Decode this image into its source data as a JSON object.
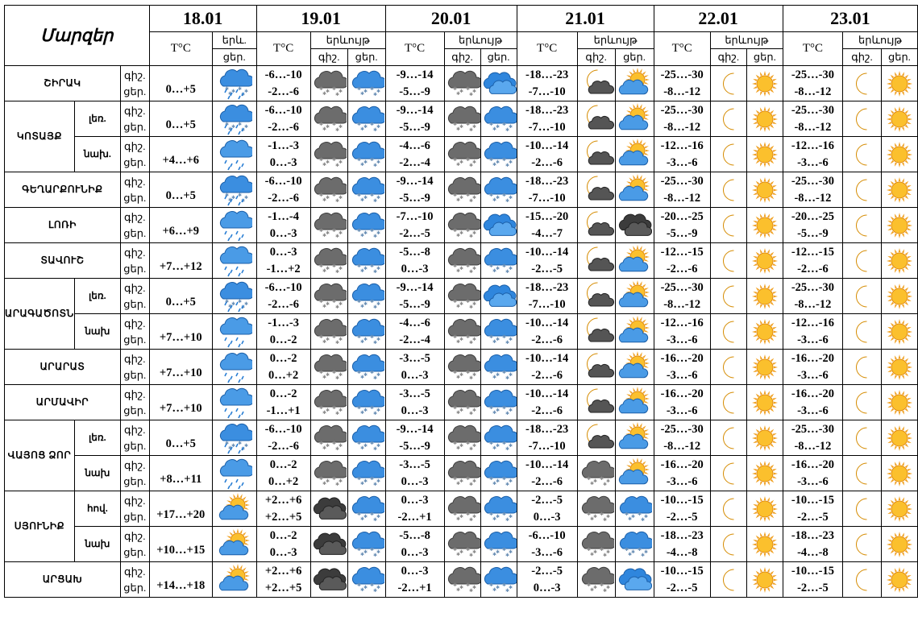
{
  "header": {
    "regions_label": "Մարզեր",
    "tc_label": "T°C",
    "phen_label_short": "երև.",
    "phen_label": "երևույթ",
    "night_label": "գիշ.",
    "day_label": "ցեր.",
    "dates": [
      "18.01",
      "19.01",
      "20.01",
      "21.01",
      "22.01",
      "23.01"
    ]
  },
  "row_labels": {
    "night": "գիշ.",
    "day": "ցեր."
  },
  "rows": [
    {
      "region": "ՇԻՐԱԿ",
      "sub": "",
      "d18": {
        "t": "0…+5",
        "i": "snow-rain"
      },
      "d19": {
        "tn": "-6…-10",
        "td": "-2…-6",
        "in": "snow-dark",
        "id": "snow-blue"
      },
      "d20": {
        "tn": "-9…-14",
        "td": "-5…-9",
        "in": "snow-dark",
        "id": "cloud-blue"
      },
      "d21": {
        "tn": "-18…-23",
        "td": "-7…-10",
        "in": "moon-cloud",
        "id": "sun-cloud"
      },
      "d22": {
        "tn": "-25…-30",
        "td": "-8…-12",
        "in": "moon",
        "id": "sun"
      },
      "d23": {
        "tn": "-25…-30",
        "td": "-8…-12",
        "in": "moon",
        "id": "sun"
      }
    },
    {
      "region": "ԿՈՏԱՅՔ",
      "sub": "լեռ.",
      "d18": {
        "t": "0…+5",
        "i": "snow-rain"
      },
      "d19": {
        "tn": "-6…-10",
        "td": "-2…-6",
        "in": "snow-dark",
        "id": "snow-blue"
      },
      "d20": {
        "tn": "-9…-14",
        "td": "-5…-9",
        "in": "snow-dark",
        "id": "snow-blue"
      },
      "d21": {
        "tn": "-18…-23",
        "td": "-7…-10",
        "in": "moon-cloud",
        "id": "sun-cloud"
      },
      "d22": {
        "tn": "-25…-30",
        "td": "-8…-12",
        "in": "moon",
        "id": "sun"
      },
      "d23": {
        "tn": "-25…-30",
        "td": "-8…-12",
        "in": "moon",
        "id": "sun"
      }
    },
    {
      "region": "",
      "sub": "նախ.",
      "d18": {
        "t": "+4…+6",
        "i": "rain"
      },
      "d19": {
        "tn": "-1…-3",
        "td": "0…-3",
        "in": "snow-dark",
        "id": "snow-blue"
      },
      "d20": {
        "tn": "-4…-6",
        "td": "-2…-4",
        "in": "snow-dark",
        "id": "snow-blue"
      },
      "d21": {
        "tn": "-10…-14",
        "td": "-2…-6",
        "in": "moon-cloud",
        "id": "sun-cloud"
      },
      "d22": {
        "tn": "-12…-16",
        "td": "-3…-6",
        "in": "moon",
        "id": "sun"
      },
      "d23": {
        "tn": "-12…-16",
        "td": "-3…-6",
        "in": "moon",
        "id": "sun"
      }
    },
    {
      "region": "ԳԵՂԱՐՔՈՒՆԻՔ",
      "sub": "",
      "d18": {
        "t": "0…+5",
        "i": "snow-rain"
      },
      "d19": {
        "tn": "-6…-10",
        "td": "-2…-6",
        "in": "snow-dark",
        "id": "snow-blue"
      },
      "d20": {
        "tn": "-9…-14",
        "td": "-5…-9",
        "in": "snow-dark",
        "id": "snow-blue"
      },
      "d21": {
        "tn": "-18…-23",
        "td": "-7…-10",
        "in": "moon-cloud",
        "id": "sun-cloud"
      },
      "d22": {
        "tn": "-25…-30",
        "td": "-8…-12",
        "in": "moon",
        "id": "sun"
      },
      "d23": {
        "tn": "-25…-30",
        "td": "-8…-12",
        "in": "moon",
        "id": "sun"
      }
    },
    {
      "region": "ԼՈՌԻ",
      "sub": "",
      "d18": {
        "t": "+6…+9",
        "i": "rain"
      },
      "d19": {
        "tn": "-1…-4",
        "td": "0…-3",
        "in": "snow-dark",
        "id": "snow-blue"
      },
      "d20": {
        "tn": "-7…-10",
        "td": "-2…-5",
        "in": "snow-dark",
        "id": "cloud-blue"
      },
      "d21": {
        "tn": "-15…-20",
        "td": "-4…-7",
        "in": "moon-cloud",
        "id": "dark-cloud"
      },
      "d22": {
        "tn": "-20…-25",
        "td": "-5…-9",
        "in": "moon",
        "id": "sun"
      },
      "d23": {
        "tn": "-20…-25",
        "td": "-5…-9",
        "in": "moon",
        "id": "sun"
      }
    },
    {
      "region": "ՏԱՎՈՒՇ",
      "sub": "",
      "d18": {
        "t": "+7…+12",
        "i": "rain"
      },
      "d19": {
        "tn": "0…-3",
        "td": "-1…+2",
        "in": "snow-dark",
        "id": "snow-blue"
      },
      "d20": {
        "tn": "-5…-8",
        "td": "0…-3",
        "in": "snow-dark",
        "id": "snow-blue"
      },
      "d21": {
        "tn": "-10…-14",
        "td": "-2…-5",
        "in": "moon-cloud",
        "id": "sun-cloud"
      },
      "d22": {
        "tn": "-12…-15",
        "td": "-2…-6",
        "in": "moon",
        "id": "sun"
      },
      "d23": {
        "tn": "-12…-15",
        "td": "-2…-6",
        "in": "moon",
        "id": "sun"
      }
    },
    {
      "region": "ԱՐԱԳԱԾՈՏՆ",
      "sub": "լեռ.",
      "d18": {
        "t": "0…+5",
        "i": "snow-rain"
      },
      "d19": {
        "tn": "-6…-10",
        "td": "-2…-6",
        "in": "snow-dark",
        "id": "snow-blue"
      },
      "d20": {
        "tn": "-9…-14",
        "td": "-5…-9",
        "in": "snow-dark",
        "id": "cloud-blue"
      },
      "d21": {
        "tn": "-18…-23",
        "td": "-7…-10",
        "in": "moon-cloud",
        "id": "sun-cloud"
      },
      "d22": {
        "tn": "-25…-30",
        "td": "-8…-12",
        "in": "moon",
        "id": "sun"
      },
      "d23": {
        "tn": "-25…-30",
        "td": "-8…-12",
        "in": "moon",
        "id": "sun"
      }
    },
    {
      "region": "",
      "sub": "նախ",
      "d18": {
        "t": "+7…+10",
        "i": "rain"
      },
      "d19": {
        "tn": "-1…-3",
        "td": "0…-2",
        "in": "snow-dark",
        "id": "snow-blue"
      },
      "d20": {
        "tn": "-4…-6",
        "td": "-2…-4",
        "in": "snow-dark",
        "id": "snow-blue"
      },
      "d21": {
        "tn": "-10…-14",
        "td": "-2…-6",
        "in": "moon-cloud",
        "id": "sun-cloud"
      },
      "d22": {
        "tn": "-12…-16",
        "td": "-3…-6",
        "in": "moon",
        "id": "sun"
      },
      "d23": {
        "tn": "-12…-16",
        "td": "-3…-6",
        "in": "moon",
        "id": "sun"
      }
    },
    {
      "region": "ԱՐԱՐԱՏ",
      "sub": "",
      "d18": {
        "t": "+7…+10",
        "i": "rain"
      },
      "d19": {
        "tn": "0…-2",
        "td": "0…+2",
        "in": "snow-dark",
        "id": "snow-blue"
      },
      "d20": {
        "tn": "-3…-5",
        "td": "0…-3",
        "in": "snow-dark",
        "id": "snow-blue"
      },
      "d21": {
        "tn": "-10…-14",
        "td": "-2…-6",
        "in": "moon-cloud",
        "id": "sun-cloud"
      },
      "d22": {
        "tn": "-16…-20",
        "td": "-3…-6",
        "in": "moon",
        "id": "sun"
      },
      "d23": {
        "tn": "-16…-20",
        "td": "-3…-6",
        "in": "moon",
        "id": "sun"
      }
    },
    {
      "region": "ԱՐՄԱՎԻՐ",
      "sub": "",
      "d18": {
        "t": "+7…+10",
        "i": "rain"
      },
      "d19": {
        "tn": "0…-2",
        "td": "-1…+1",
        "in": "snow-dark",
        "id": "snow-blue"
      },
      "d20": {
        "tn": "-3…-5",
        "td": "0…-3",
        "in": "snow-dark",
        "id": "snow-blue"
      },
      "d21": {
        "tn": "-10…-14",
        "td": "-2…-6",
        "in": "moon-cloud",
        "id": "sun-cloud"
      },
      "d22": {
        "tn": "-16…-20",
        "td": "-3…-6",
        "in": "moon",
        "id": "sun"
      },
      "d23": {
        "tn": "-16…-20",
        "td": "-3…-6",
        "in": "moon",
        "id": "sun"
      }
    },
    {
      "region": "ՎԱՅՈՑ ՁՈՐ",
      "sub": "լեռ.",
      "d18": {
        "t": "0…+5",
        "i": "snow-rain"
      },
      "d19": {
        "tn": "-6…-10",
        "td": "-2…-6",
        "in": "snow-dark",
        "id": "snow-blue"
      },
      "d20": {
        "tn": "-9…-14",
        "td": "-5…-9",
        "in": "snow-dark",
        "id": "snow-blue"
      },
      "d21": {
        "tn": "-18…-23",
        "td": "-7…-10",
        "in": "moon-cloud",
        "id": "sun-cloud"
      },
      "d22": {
        "tn": "-25…-30",
        "td": "-8…-12",
        "in": "moon",
        "id": "sun"
      },
      "d23": {
        "tn": "-25…-30",
        "td": "-8…-12",
        "in": "moon",
        "id": "sun"
      }
    },
    {
      "region": "",
      "sub": "նախ",
      "d18": {
        "t": "+8…+11",
        "i": "rain"
      },
      "d19": {
        "tn": "0…-2",
        "td": "0…+2",
        "in": "snow-dark",
        "id": "snow-blue"
      },
      "d20": {
        "tn": "-3…-5",
        "td": "0…-3",
        "in": "snow-dark",
        "id": "snow-blue"
      },
      "d21": {
        "tn": "-10…-14",
        "td": "-2…-6",
        "in": "snow-dark",
        "id": "sun-cloud"
      },
      "d22": {
        "tn": "-16…-20",
        "td": "-3…-6",
        "in": "moon",
        "id": "sun"
      },
      "d23": {
        "tn": "-16…-20",
        "td": "-3…-6",
        "in": "moon",
        "id": "sun"
      }
    },
    {
      "region": "ՍՅՈՒՆԻՔ",
      "sub": "հով.",
      "d18": {
        "t": "+17…+20",
        "i": "sun-cloud"
      },
      "d19": {
        "tn": "+2…+6",
        "td": "+2…+5",
        "in": "dark-cloud",
        "id": "snow-blue"
      },
      "d20": {
        "tn": "0…-3",
        "td": "-2…+1",
        "in": "snow-dark",
        "id": "snow-blue"
      },
      "d21": {
        "tn": "-2…-5",
        "td": "0…-3",
        "in": "snow-dark",
        "id": "snow-blue"
      },
      "d22": {
        "tn": "-10…-15",
        "td": "-2…-5",
        "in": "moon",
        "id": "sun"
      },
      "d23": {
        "tn": "-10…-15",
        "td": "-2…-5",
        "in": "moon",
        "id": "sun"
      }
    },
    {
      "region": "",
      "sub": "նախ",
      "d18": {
        "t": "+10…+15",
        "i": "sun-cloud"
      },
      "d19": {
        "tn": "0…-2",
        "td": "0…-3",
        "in": "dark-cloud",
        "id": "snow-blue"
      },
      "d20": {
        "tn": "-5…-8",
        "td": "0…-3",
        "in": "snow-dark",
        "id": "snow-blue"
      },
      "d21": {
        "tn": "-6…-10",
        "td": "-3…-6",
        "in": "snow-dark",
        "id": "snow-blue"
      },
      "d22": {
        "tn": "-18…-23",
        "td": "-4…-8",
        "in": "moon",
        "id": "sun"
      },
      "d23": {
        "tn": "-18…-23",
        "td": "-4…-8",
        "in": "moon",
        "id": "sun"
      }
    },
    {
      "region": "ԱՐՑԱԽ",
      "sub": "",
      "d18": {
        "t": "+14…+18",
        "i": "sun-cloud"
      },
      "d19": {
        "tn": "+2…+6",
        "td": "+2…+5",
        "in": "dark-cloud",
        "id": "snow-blue"
      },
      "d20": {
        "tn": "0…-3",
        "td": "-2…+1",
        "in": "snow-dark",
        "id": "snow-blue"
      },
      "d21": {
        "tn": "-2…-5",
        "td": "0…-3",
        "in": "snow-dark",
        "id": "cloud-blue"
      },
      "d22": {
        "tn": "-10…-15",
        "td": "-2…-5",
        "in": "moon",
        "id": "sun"
      },
      "d23": {
        "tn": "-10…-15",
        "td": "-2…-5",
        "in": "moon",
        "id": "sun"
      }
    }
  ]
}
